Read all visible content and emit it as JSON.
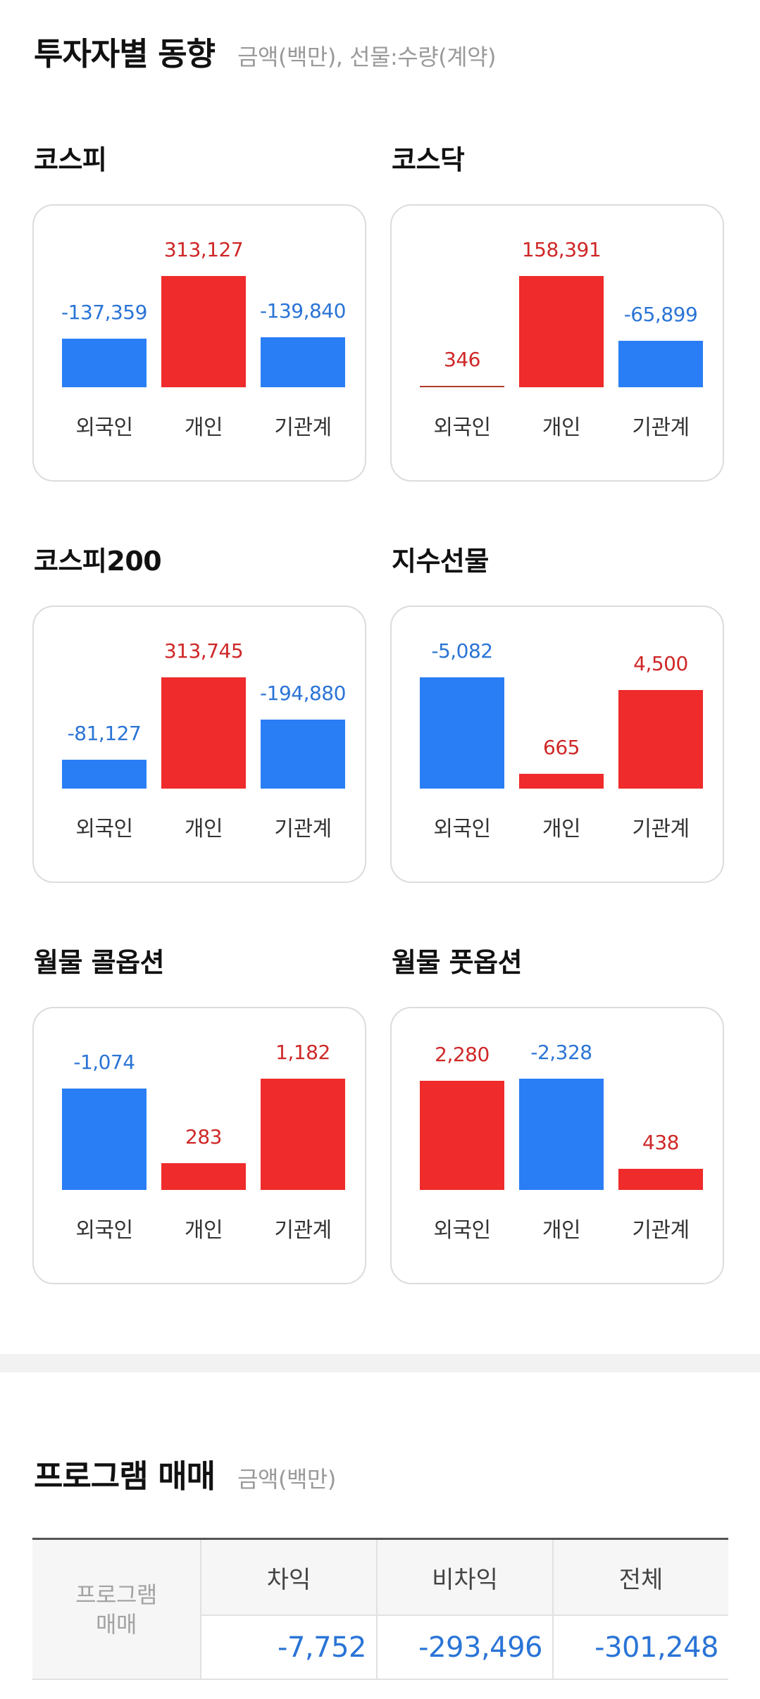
{
  "investor_trends": {
    "title": "투자자별 동향",
    "subtitle": "금액(백만), 선물:수량(계약)"
  },
  "cards": [
    {
      "title": "코스피",
      "chart_data": {
        "type": "bar",
        "categories": [
          "외국인",
          "개인",
          "기관계"
        ],
        "values": [
          -137359,
          313127,
          -139840
        ],
        "labels": [
          "-137,359",
          "313,127",
          "-139,840"
        ]
      }
    },
    {
      "title": "코스닥",
      "chart_data": {
        "type": "bar",
        "categories": [
          "외국인",
          "개인",
          "기관계"
        ],
        "values": [
          346,
          158391,
          -65899
        ],
        "labels": [
          "346",
          "158,391",
          "-65,899"
        ]
      }
    },
    {
      "title": "코스피200",
      "chart_data": {
        "type": "bar",
        "categories": [
          "외국인",
          "개인",
          "기관계"
        ],
        "values": [
          -81127,
          313745,
          -194880
        ],
        "labels": [
          "-81,127",
          "313,745",
          "-194,880"
        ]
      }
    },
    {
      "title": "지수선물",
      "chart_data": {
        "type": "bar",
        "categories": [
          "외국인",
          "개인",
          "기관계"
        ],
        "values": [
          -5082,
          665,
          4500
        ],
        "labels": [
          "-5,082",
          "665",
          "4,500"
        ]
      }
    },
    {
      "title": "월물 콜옵션",
      "chart_data": {
        "type": "bar",
        "categories": [
          "외국인",
          "개인",
          "기관계"
        ],
        "values": [
          -1074,
          283,
          1182
        ],
        "labels": [
          "-1,074",
          "283",
          "1,182"
        ]
      }
    },
    {
      "title": "월물 풋옵션",
      "chart_data": {
        "type": "bar",
        "categories": [
          "외국인",
          "개인",
          "기관계"
        ],
        "values": [
          2280,
          -2328,
          438
        ],
        "labels": [
          "2,280",
          "-2,328",
          "438"
        ]
      }
    }
  ],
  "colors": {
    "positive": "#ef2b2b",
    "negative": "#2a7ef5"
  },
  "program_trading": {
    "title": "프로그램 매매",
    "subtitle": "금액(백만)",
    "row_label_line1": "프로그램",
    "row_label_line2": "매매",
    "headers": [
      "차익",
      "비차익",
      "전체"
    ],
    "values": [
      "-7,752",
      "-293,496",
      "-301,248"
    ]
  }
}
